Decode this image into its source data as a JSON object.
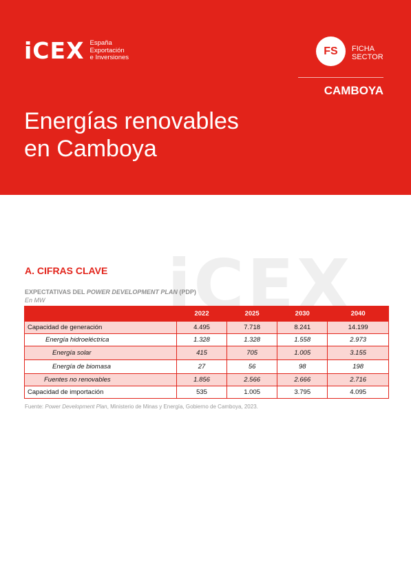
{
  "header": {
    "logo_mark": "iCEX",
    "logo_line1": "España",
    "logo_line2": "Exportación",
    "logo_line3": "e Inversiones",
    "badge": "FS",
    "badge_line1": "FICHA",
    "badge_line2": "SECTOR",
    "country": "CAMBOYA",
    "title_line1": "Energías renovables",
    "title_line2": "en Camboya",
    "color": "#e2231a"
  },
  "watermark": "iCEX",
  "section_title": "A. CIFRAS CLAVE",
  "table_caption": {
    "prefix": "EXPECTATIVAS DEL ",
    "italic": "POWER DEVELOPMENT PLAN",
    "suffix": " (PDP)",
    "unit": "En MW"
  },
  "table": {
    "columns": [
      "2022",
      "2025",
      "2030",
      "2040"
    ],
    "rows": [
      {
        "label": "Capacidad de generación",
        "values": [
          "4.495",
          "7.718",
          "8.241",
          "14.199"
        ]
      },
      {
        "label": "Energía hidroeléctrica",
        "values": [
          "1.328",
          "1.328",
          "1.558",
          "2.973"
        ]
      },
      {
        "label": "Energía solar",
        "values": [
          "415",
          "705",
          "1.005",
          "3.155"
        ]
      },
      {
        "label": "Energía de biomasa",
        "values": [
          "27",
          "56",
          "98",
          "198"
        ]
      },
      {
        "label": "Fuentes no renovables",
        "values": [
          "1.856",
          "2.566",
          "2.666",
          "2.716"
        ]
      },
      {
        "label": "Capacidad de importación",
        "values": [
          "535",
          "1.005",
          "3.795",
          "4.095"
        ]
      }
    ]
  },
  "source": {
    "prefix": "Fuente: ",
    "italic": "Power Development Plan",
    "suffix": ", Ministerio de Minas y Energía, Gobierno de Camboya, 2023."
  }
}
